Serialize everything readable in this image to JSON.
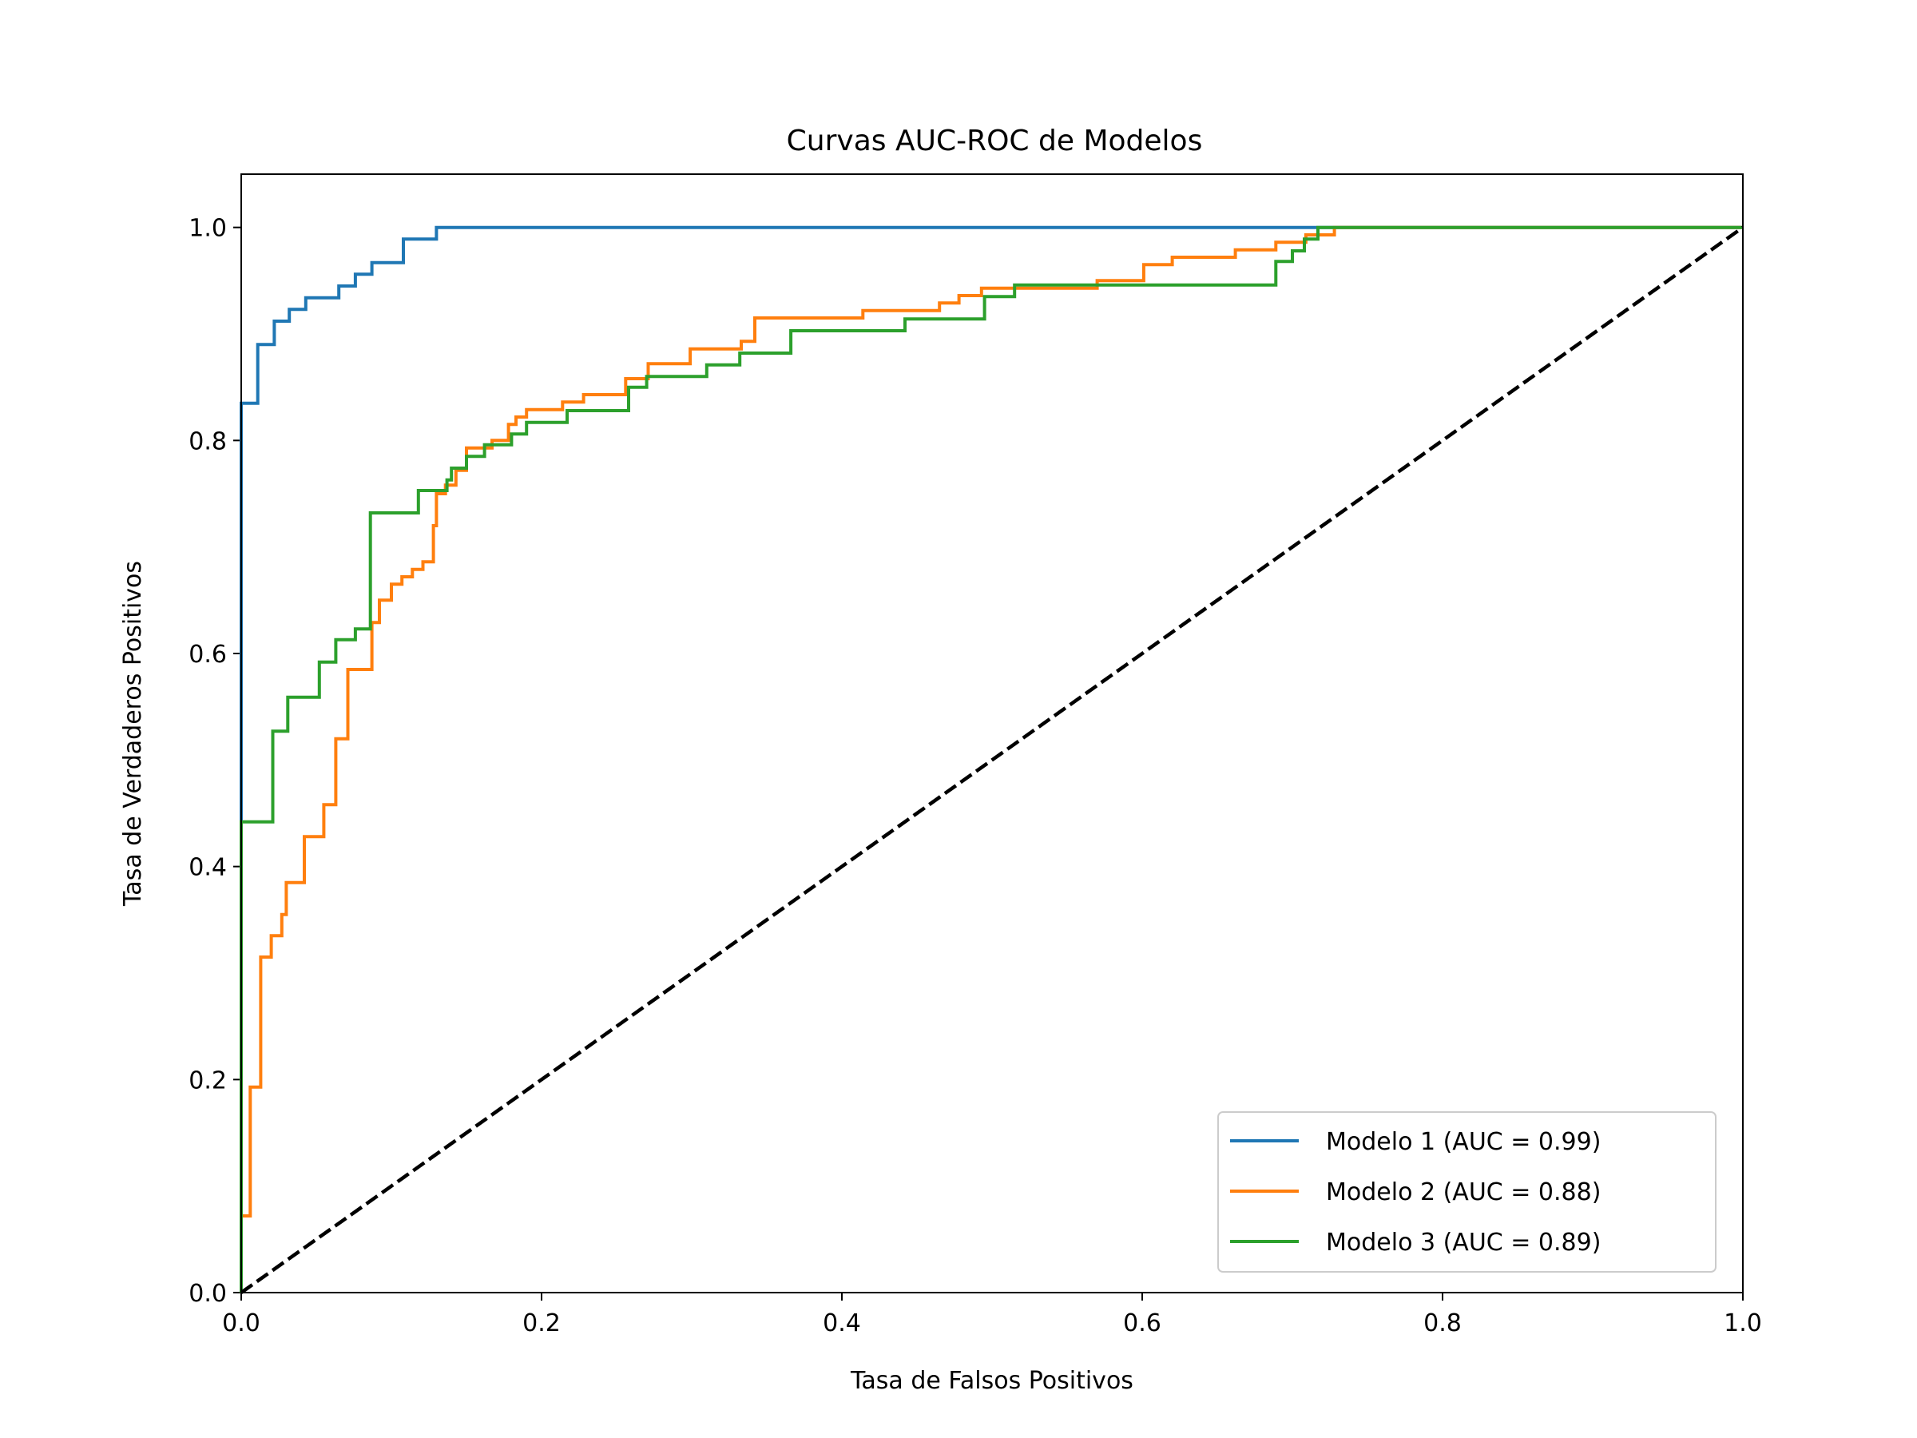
{
  "chart_data": {
    "type": "line",
    "title": "Curvas AUC-ROC de Modelos",
    "xlabel": "Tasa de Falsos Positivos",
    "ylabel": "Tasa de Verdaderos Positivos",
    "xlim": [
      0.0,
      1.0
    ],
    "ylim": [
      0.0,
      1.05
    ],
    "xticks": [
      "0.0",
      "0.2",
      "0.4",
      "0.6",
      "0.8",
      "1.0"
    ],
    "yticks": [
      "0.0",
      "0.2",
      "0.4",
      "0.6",
      "0.8",
      "1.0"
    ],
    "grid": false,
    "legend_position": "lower-right",
    "series": [
      {
        "name": "Modelo 1 (AUC = 0.99)",
        "color": "#1f77b4",
        "x": [
          0,
          0,
          0.011,
          0.011,
          0.022,
          0.022,
          0.032,
          0.032,
          0.043,
          0.043,
          0.065,
          0.065,
          0.076,
          0.076,
          0.087,
          0.087,
          0.108,
          0.108,
          0.13,
          0.13,
          1.0
        ],
        "y": [
          0,
          0.835,
          0.835,
          0.89,
          0.89,
          0.912,
          0.912,
          0.923,
          0.923,
          0.934,
          0.934,
          0.945,
          0.945,
          0.956,
          0.956,
          0.967,
          0.967,
          0.989,
          0.989,
          1.0,
          1.0
        ]
      },
      {
        "name": "Modelo 2 (AUC = 0.88)",
        "color": "#ff7f0e",
        "x": [
          0,
          0,
          0.006,
          0.006,
          0.013,
          0.013,
          0.02,
          0.02,
          0.027,
          0.027,
          0.03,
          0.03,
          0.042,
          0.042,
          0.055,
          0.055,
          0.063,
          0.063,
          0.071,
          0.071,
          0.087,
          0.087,
          0.092,
          0.092,
          0.1,
          0.1,
          0.107,
          0.107,
          0.114,
          0.114,
          0.121,
          0.121,
          0.128,
          0.128,
          0.13,
          0.13,
          0.136,
          0.136,
          0.143,
          0.143,
          0.15,
          0.15,
          0.167,
          0.167,
          0.178,
          0.178,
          0.183,
          0.183,
          0.19,
          0.19,
          0.214,
          0.214,
          0.228,
          0.228,
          0.256,
          0.256,
          0.271,
          0.271,
          0.299,
          0.299,
          0.333,
          0.333,
          0.342,
          0.342,
          0.414,
          0.414,
          0.465,
          0.465,
          0.478,
          0.478,
          0.493,
          0.493,
          0.57,
          0.57,
          0.601,
          0.601,
          0.62,
          0.62,
          0.662,
          0.662,
          0.689,
          0.689,
          0.709,
          0.709,
          0.728,
          0.728,
          0.757,
          0.757,
          1.0
        ],
        "y": [
          0,
          0.072,
          0.072,
          0.193,
          0.193,
          0.315,
          0.315,
          0.335,
          0.335,
          0.355,
          0.355,
          0.385,
          0.385,
          0.428,
          0.428,
          0.458,
          0.458,
          0.52,
          0.52,
          0.585,
          0.585,
          0.629,
          0.629,
          0.65,
          0.65,
          0.665,
          0.665,
          0.672,
          0.672,
          0.679,
          0.679,
          0.686,
          0.686,
          0.72,
          0.72,
          0.75,
          0.75,
          0.758,
          0.758,
          0.772,
          0.772,
          0.793,
          0.793,
          0.8,
          0.8,
          0.815,
          0.815,
          0.822,
          0.822,
          0.829,
          0.829,
          0.836,
          0.836,
          0.843,
          0.843,
          0.858,
          0.858,
          0.872,
          0.872,
          0.886,
          0.886,
          0.893,
          0.893,
          0.915,
          0.915,
          0.922,
          0.922,
          0.929,
          0.929,
          0.936,
          0.936,
          0.943,
          0.943,
          0.95,
          0.95,
          0.965,
          0.965,
          0.972,
          0.972,
          0.979,
          0.979,
          0.986,
          0.986,
          0.993,
          0.993,
          1.0,
          1.0,
          1.0,
          1.0
        ]
      },
      {
        "name": "Modelo 3 (AUC = 0.89)",
        "color": "#2ca02c",
        "x": [
          0,
          0,
          0.021,
          0.021,
          0.031,
          0.031,
          0.052,
          0.052,
          0.063,
          0.063,
          0.076,
          0.076,
          0.086,
          0.086,
          0.118,
          0.118,
          0.137,
          0.137,
          0.14,
          0.14,
          0.15,
          0.15,
          0.162,
          0.162,
          0.18,
          0.18,
          0.19,
          0.19,
          0.217,
          0.217,
          0.258,
          0.258,
          0.27,
          0.27,
          0.31,
          0.31,
          0.332,
          0.332,
          0.366,
          0.366,
          0.442,
          0.442,
          0.495,
          0.495,
          0.515,
          0.515,
          0.689,
          0.689,
          0.7,
          0.7,
          0.708,
          0.708,
          0.717,
          0.717,
          1.0
        ],
        "y": [
          0,
          0.442,
          0.442,
          0.527,
          0.527,
          0.559,
          0.559,
          0.592,
          0.592,
          0.613,
          0.613,
          0.623,
          0.623,
          0.732,
          0.732,
          0.753,
          0.753,
          0.763,
          0.763,
          0.774,
          0.774,
          0.785,
          0.785,
          0.796,
          0.796,
          0.806,
          0.806,
          0.817,
          0.817,
          0.828,
          0.828,
          0.85,
          0.85,
          0.86,
          0.86,
          0.871,
          0.871,
          0.882,
          0.882,
          0.903,
          0.903,
          0.914,
          0.914,
          0.935,
          0.935,
          0.946,
          0.946,
          0.968,
          0.968,
          0.978,
          0.978,
          0.989,
          0.989,
          1.0,
          1.0
        ]
      }
    ],
    "reference_line": {
      "style": "dashed",
      "color": "#000000",
      "x": [
        0,
        1
      ],
      "y": [
        0,
        1
      ]
    }
  }
}
